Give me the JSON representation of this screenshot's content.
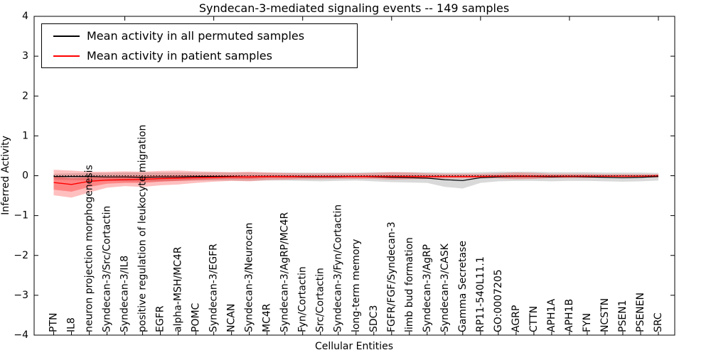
{
  "figure": {
    "title": "Syndecan-3-mediated signaling events -- 149 samples",
    "xlabel": "Cellular Entities",
    "ylabel": "Inferred Activity"
  },
  "legend": {
    "items": [
      {
        "label": "Mean activity in all permuted samples",
        "color": "#000000"
      },
      {
        "label": "Mean activity in patient samples",
        "color": "#ff0000"
      }
    ]
  },
  "chart_data": {
    "type": "line",
    "title": "Syndecan-3-mediated signaling events -- 149 samples",
    "xlabel": "Cellular Entities",
    "ylabel": "Inferred Activity",
    "ylim": [
      -4,
      4
    ],
    "yticks": [
      4,
      3,
      2,
      1,
      0,
      -1,
      -2,
      -3,
      -4
    ],
    "grid": false,
    "legend_position": "upper left",
    "zero_line": 0,
    "categories": [
      "PTN",
      "IL8",
      "neuron projection morphogenesis",
      "Syndecan-3/Src/Cortactin",
      "Syndecan-3/IL8",
      "positive regulation of leukocyte migration",
      "EGFR",
      "alpha-MSH/MC4R",
      "POMC",
      "Syndecan-3/EGFR",
      "NCAN",
      "Syndecan-3/Neurocan",
      "MC4R",
      "Syndecan-3/AgRP/MC4R",
      "Fyn/Cortactin",
      "Src/Cortactin",
      "Syndecan-3/Fyn/Cortactin",
      "long-term memory",
      "SDC3",
      "FGFR/FGF/Syndecan-3",
      "limb bud formation",
      "Syndecan-3/AgRP",
      "Syndecan-3/CASK",
      "Gamma Secretase",
      "RP11-540L11.1",
      "GO:0007205",
      "AGRP",
      "CTTN",
      "APH1A",
      "APH1B",
      "FYN",
      "NCSTN",
      "PSEN1",
      "PSENEN",
      "SRC"
    ],
    "series": [
      {
        "name": "Mean activity in all permuted samples",
        "color": "#000000",
        "values": [
          -0.02,
          -0.02,
          -0.02,
          -0.03,
          -0.03,
          -0.04,
          -0.03,
          -0.03,
          -0.02,
          -0.02,
          -0.02,
          -0.03,
          -0.02,
          -0.02,
          -0.03,
          -0.03,
          -0.03,
          -0.02,
          -0.03,
          -0.04,
          -0.05,
          -0.06,
          -0.1,
          -0.12,
          -0.05,
          -0.03,
          -0.02,
          -0.02,
          -0.03,
          -0.02,
          -0.03,
          -0.04,
          -0.05,
          -0.04,
          -0.02
        ]
      },
      {
        "name": "Mean activity in patient samples",
        "color": "#ff0000",
        "values": [
          -0.17,
          -0.22,
          -0.14,
          -0.11,
          -0.1,
          -0.09,
          -0.07,
          -0.06,
          -0.05,
          -0.04,
          -0.03,
          -0.03,
          -0.02,
          -0.02,
          -0.02,
          -0.02,
          -0.02,
          -0.02,
          -0.02,
          -0.02,
          -0.02,
          -0.02,
          -0.02,
          -0.02,
          -0.02,
          -0.01,
          -0.01,
          -0.01,
          -0.01,
          -0.01,
          -0.01,
          -0.01,
          -0.01,
          -0.01,
          0.0
        ]
      }
    ],
    "bands": [
      {
        "name": "permuted-range",
        "color": "rgba(0,0,0,0.15)",
        "high": [
          0.05,
          0.06,
          0.07,
          0.07,
          0.08,
          0.08,
          0.08,
          0.08,
          0.08,
          0.08,
          0.08,
          0.08,
          0.08,
          0.08,
          0.08,
          0.08,
          0.08,
          0.08,
          0.09,
          0.09,
          0.09,
          0.09,
          0.08,
          0.08,
          0.09,
          0.1,
          0.1,
          0.1,
          0.09,
          0.09,
          0.09,
          0.08,
          0.08,
          0.08,
          0.07
        ],
        "low": [
          -0.1,
          -0.11,
          -0.12,
          -0.13,
          -0.14,
          -0.15,
          -0.14,
          -0.13,
          -0.12,
          -0.12,
          -0.12,
          -0.13,
          -0.12,
          -0.12,
          -0.13,
          -0.14,
          -0.13,
          -0.12,
          -0.14,
          -0.16,
          -0.17,
          -0.18,
          -0.28,
          -0.32,
          -0.18,
          -0.14,
          -0.13,
          -0.13,
          -0.14,
          -0.13,
          -0.13,
          -0.14,
          -0.15,
          -0.14,
          -0.12
        ]
      },
      {
        "name": "patient-range-outer",
        "color": "rgba(255,0,0,0.25)",
        "high": [
          0.15,
          0.13,
          0.1,
          0.1,
          0.11,
          0.1,
          0.12,
          0.13,
          0.11,
          0.1,
          0.09,
          0.1,
          0.08,
          0.07,
          0.06,
          0.06,
          0.06,
          0.06,
          0.07,
          0.09,
          0.08,
          0.06,
          0.05,
          0.05,
          0.05,
          0.06,
          0.08,
          0.07,
          0.05,
          0.05,
          0.05,
          0.04,
          0.04,
          0.04,
          0.04
        ],
        "low": [
          -0.49,
          -0.55,
          -0.42,
          -0.3,
          -0.26,
          -0.28,
          -0.24,
          -0.22,
          -0.18,
          -0.15,
          -0.13,
          -0.14,
          -0.11,
          -0.1,
          -0.09,
          -0.09,
          -0.08,
          -0.08,
          -0.08,
          -0.1,
          -0.09,
          -0.08,
          -0.07,
          -0.07,
          -0.06,
          -0.07,
          -0.09,
          -0.08,
          -0.06,
          -0.06,
          -0.06,
          -0.05,
          -0.05,
          -0.05,
          -0.04
        ]
      },
      {
        "name": "patient-range-inner",
        "color": "rgba(255,0,0,0.3)",
        "high": [
          -0.02,
          -0.06,
          -0.04,
          -0.02,
          -0.01,
          -0.01,
          0.0,
          0.01,
          0.01,
          0.01,
          0.01,
          0.01,
          0.01,
          0.01,
          0.0,
          0.0,
          0.0,
          0.0,
          0.01,
          0.01,
          0.01,
          0.0,
          0.0,
          0.0,
          0.0,
          0.01,
          0.02,
          0.01,
          0.0,
          0.0,
          0.0,
          0.0,
          0.0,
          0.0,
          0.01
        ],
        "low": [
          -0.35,
          -0.4,
          -0.28,
          -0.2,
          -0.18,
          -0.18,
          -0.15,
          -0.13,
          -0.11,
          -0.09,
          -0.08,
          -0.08,
          -0.06,
          -0.06,
          -0.05,
          -0.05,
          -0.05,
          -0.05,
          -0.05,
          -0.06,
          -0.05,
          -0.05,
          -0.04,
          -0.04,
          -0.04,
          -0.04,
          -0.05,
          -0.05,
          -0.04,
          -0.04,
          -0.03,
          -0.03,
          -0.03,
          -0.03,
          -0.03
        ]
      }
    ]
  }
}
